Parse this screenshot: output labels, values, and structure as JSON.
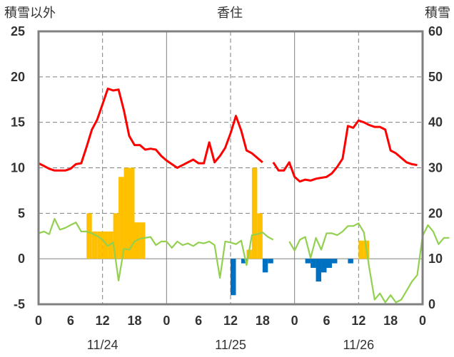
{
  "chart_data": {
    "type": "bar+line",
    "title": "香住",
    "left_axis_label": "積雪以外",
    "right_axis_label": "積雪",
    "left_ylim": [
      -5,
      25
    ],
    "left_ticks": [
      "25",
      "20",
      "15",
      "10",
      "5",
      "0",
      "-5"
    ],
    "right_ylim": [
      0,
      60
    ],
    "right_ticks": [
      "60",
      "50",
      "40",
      "30",
      "20",
      "10",
      "0"
    ],
    "x_tick_labels": [
      "0",
      "6",
      "12",
      "18",
      "0",
      "6",
      "12",
      "18",
      "0",
      "6",
      "12",
      "18",
      "0"
    ],
    "date_labels": [
      "11/24",
      "11/25",
      "11/26"
    ],
    "grid": "dashed vertical at 12:00, solid day separators, dashed horizontal at each left tick",
    "colors": {
      "temperature": "#ff0000",
      "green_line": "#92d050",
      "positive_bars": "#ffc000",
      "negative_bars": "#0070c0",
      "snow_depth": "#7030a0",
      "frame": "#808080"
    },
    "series": [
      {
        "kind": "line",
        "color_key": "temperature",
        "axis": "left",
        "segments": [
          [
            [
              0,
              10.5
            ],
            [
              1,
              10.2
            ],
            [
              2,
              9.9
            ],
            [
              3,
              9.7
            ],
            [
              4,
              9.7
            ],
            [
              5,
              9.7
            ],
            [
              6,
              9.9
            ],
            [
              7,
              10.4
            ],
            [
              8,
              10.5
            ],
            [
              9,
              12.3
            ],
            [
              10,
              14.2
            ],
            [
              11,
              15.3
            ],
            [
              12,
              17.0
            ],
            [
              13,
              18.7
            ],
            [
              14,
              18.5
            ],
            [
              15,
              18.6
            ],
            [
              16,
              16.3
            ],
            [
              17,
              13.5
            ],
            [
              18,
              12.5
            ],
            [
              19,
              12.5
            ],
            [
              20,
              12.0
            ],
            [
              21,
              12.1
            ],
            [
              22,
              12.0
            ],
            [
              23,
              11.3
            ],
            [
              24,
              10.8
            ],
            [
              25,
              10.4
            ],
            [
              26,
              10.0
            ],
            [
              27,
              10.3
            ],
            [
              28,
              10.6
            ],
            [
              29,
              10.9
            ],
            [
              30,
              10.5
            ],
            [
              31,
              10.5
            ],
            [
              32,
              12.8
            ],
            [
              33,
              10.6
            ],
            [
              34,
              11.3
            ],
            [
              35,
              12.2
            ],
            [
              36,
              13.8
            ],
            [
              37,
              15.7
            ],
            [
              38,
              14.1
            ],
            [
              39,
              11.9
            ],
            [
              40,
              11.6
            ],
            [
              41,
              11.1
            ],
            [
              42,
              10.6
            ]
          ],
          [
            [
              44,
              10.6
            ],
            [
              45,
              9.7
            ],
            [
              46,
              9.7
            ],
            [
              47,
              10.6
            ],
            [
              48,
              9.0
            ],
            [
              49,
              8.5
            ],
            [
              50,
              8.7
            ],
            [
              51,
              8.6
            ],
            [
              52,
              8.8
            ],
            [
              53,
              8.9
            ],
            [
              54,
              9.0
            ],
            [
              55,
              9.4
            ],
            [
              56,
              10.1
            ],
            [
              57,
              11.0
            ],
            [
              58,
              14.6
            ],
            [
              59,
              14.4
            ],
            [
              60,
              15.2
            ],
            [
              61,
              15.0
            ],
            [
              62,
              14.7
            ],
            [
              63,
              14.5
            ],
            [
              64,
              14.5
            ],
            [
              65,
              14.2
            ],
            [
              66,
              11.9
            ],
            [
              67,
              11.6
            ],
            [
              68,
              11.1
            ],
            [
              69,
              10.6
            ],
            [
              70,
              10.4
            ],
            [
              71,
              10.3
            ]
          ]
        ]
      },
      {
        "kind": "line",
        "color_key": "green_line",
        "axis": "left",
        "segments": [
          [
            [
              0,
              2.8
            ],
            [
              1,
              3.0
            ],
            [
              2,
              2.7
            ],
            [
              3,
              4.4
            ],
            [
              4,
              3.2
            ],
            [
              5,
              3.4
            ],
            [
              6,
              3.7
            ],
            [
              7,
              4.0
            ],
            [
              8,
              3.0
            ],
            [
              9,
              3.0
            ],
            [
              10,
              2.8
            ],
            [
              11,
              2.5
            ],
            [
              12,
              2.1
            ],
            [
              13,
              1.4
            ],
            [
              14,
              1.8
            ],
            [
              15,
              -2.4
            ],
            [
              16,
              1.1
            ],
            [
              17,
              1.0
            ],
            [
              18,
              1.9
            ],
            [
              19,
              2.2
            ],
            [
              20,
              2.3
            ],
            [
              21,
              2.4
            ],
            [
              22,
              1.5
            ],
            [
              23,
              1.9
            ],
            [
              24,
              1.9
            ],
            [
              25,
              1.2
            ],
            [
              26,
              1.9
            ],
            [
              27,
              1.5
            ],
            [
              28,
              1.7
            ],
            [
              29,
              1.4
            ],
            [
              30,
              1.8
            ],
            [
              31,
              1.7
            ],
            [
              32,
              1.9
            ],
            [
              33,
              1.5
            ],
            [
              34,
              -2.1
            ],
            [
              35,
              1.9
            ],
            [
              36,
              1.8
            ],
            [
              37,
              1.6
            ],
            [
              38,
              2.0
            ],
            [
              39,
              -0.7
            ],
            [
              40,
              2.6
            ],
            [
              41,
              2.7
            ],
            [
              42,
              2.9
            ],
            [
              43,
              2.4
            ],
            [
              44,
              2.1
            ]
          ],
          [
            [
              47,
              1.9
            ],
            [
              48,
              0.9
            ],
            [
              49,
              2.1
            ],
            [
              50,
              2.4
            ],
            [
              51,
              0.1
            ],
            [
              52,
              2.3
            ],
            [
              53,
              1.0
            ],
            [
              54,
              2.8
            ],
            [
              55,
              2.8
            ],
            [
              56,
              2.6
            ],
            [
              57,
              3.0
            ],
            [
              58,
              3.6
            ],
            [
              59,
              3.6
            ],
            [
              60,
              3.9
            ],
            [
              61,
              2.9
            ],
            [
              62,
              -1.0
            ],
            [
              63,
              -4.5
            ],
            [
              64,
              -3.8
            ],
            [
              65,
              -4.8
            ],
            [
              66,
              -4.0
            ],
            [
              67,
              -4.8
            ],
            [
              68,
              -4.5
            ],
            [
              69,
              -3.5
            ],
            [
              70,
              -2.5
            ],
            [
              71,
              -1.8
            ],
            [
              72,
              2.5
            ],
            [
              73,
              3.7
            ],
            [
              74,
              3.0
            ],
            [
              75,
              1.6
            ],
            [
              76,
              2.3
            ],
            [
              77,
              2.3
            ]
          ]
        ]
      },
      {
        "kind": "bar",
        "color_key": "positive_bars",
        "axis": "left",
        "points": [
          [
            10,
            5.0
          ],
          [
            11,
            3.0
          ],
          [
            12,
            3.0
          ],
          [
            13,
            3.0
          ],
          [
            14,
            3.0
          ],
          [
            15,
            5.0
          ],
          [
            16,
            9.0
          ],
          [
            17,
            10.0
          ],
          [
            18,
            10.0
          ],
          [
            19,
            4.0
          ],
          [
            20,
            4.0
          ],
          [
            40,
            1.0
          ],
          [
            41,
            10.0
          ],
          [
            42,
            5.0
          ],
          [
            61,
            2.0
          ],
          [
            62,
            2.0
          ]
        ]
      },
      {
        "kind": "bar",
        "color_key": "negative_bars",
        "axis": "left",
        "points": [
          [
            37,
            -4.0
          ],
          [
            39,
            -0.5
          ],
          [
            43,
            -1.5
          ],
          [
            44,
            -0.5
          ],
          [
            51,
            -0.5
          ],
          [
            52,
            -1.0
          ],
          [
            53,
            -2.5
          ],
          [
            54,
            -1.5
          ],
          [
            55,
            -1.0
          ],
          [
            56,
            -0.5
          ],
          [
            59,
            -0.5
          ]
        ]
      },
      {
        "kind": "line",
        "color_key": "snow_depth",
        "axis": "right",
        "segments": [
          [
            [
              0,
              0
            ],
            [
              72,
              0
            ]
          ]
        ]
      }
    ]
  }
}
